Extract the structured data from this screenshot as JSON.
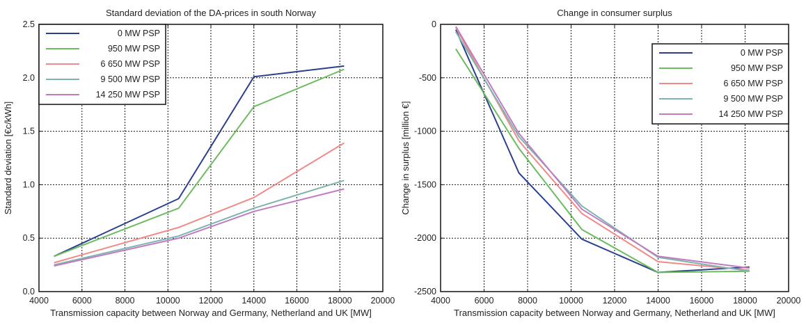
{
  "chart_data": [
    {
      "type": "line",
      "title": "Standard deviation of the DA-prices in south Norway",
      "xlabel": "Transmission capacity between Norway and Germany, Netherland and UK [MW]",
      "ylabel": "Standard deviation [€c/kWh]",
      "xlim": [
        4000,
        20000
      ],
      "ylim": [
        0.0,
        2.5
      ],
      "xticks": [
        "4000",
        "6000",
        "8000",
        "10000",
        "12000",
        "14000",
        "16000",
        "18000",
        "20000"
      ],
      "yticks": [
        "0.0",
        "0.5",
        "1.0",
        "1.5",
        "2.0",
        "2.5"
      ],
      "grid": true,
      "legend_position": "top-left",
      "series": [
        {
          "name": "0 MW PSP",
          "color": "#2b3f8f",
          "x": [
            4700,
            10500,
            14000,
            18200
          ],
          "y": [
            0.33,
            0.87,
            2.01,
            2.11
          ]
        },
        {
          "name": "950 MW PSP",
          "color": "#6cbb5e",
          "x": [
            4700,
            10500,
            14000,
            18200
          ],
          "y": [
            0.33,
            0.78,
            1.73,
            2.08
          ]
        },
        {
          "name": "6 650 MW PSP",
          "color": "#f08a88",
          "x": [
            4700,
            10500,
            14000,
            18200
          ],
          "y": [
            0.27,
            0.6,
            0.88,
            1.39
          ]
        },
        {
          "name": "9 500 MW PSP",
          "color": "#7bb5ad",
          "x": [
            4700,
            10500,
            14000,
            18200
          ],
          "y": [
            0.25,
            0.52,
            0.78,
            1.04
          ]
        },
        {
          "name": "14 250 MW PSP",
          "color": "#c27ac3",
          "x": [
            4700,
            10500,
            14000,
            18200
          ],
          "y": [
            0.24,
            0.5,
            0.75,
            0.96
          ]
        }
      ]
    },
    {
      "type": "line",
      "title": "Change in consumer surplus",
      "xlabel": "Transmission capacity between Norway and Germany, Netherland and UK [MW]",
      "ylabel": "Change in surplus [million €]",
      "xlim": [
        4000,
        20000
      ],
      "ylim": [
        -2500,
        0
      ],
      "xticks": [
        "4000",
        "6000",
        "8000",
        "10000",
        "12000",
        "14000",
        "16000",
        "18000",
        "20000"
      ],
      "yticks": [
        "-2500",
        "-2000",
        "-1500",
        "-1000",
        "-500",
        "0"
      ],
      "grid": true,
      "legend_position": "top-right",
      "series": [
        {
          "name": "0 MW PSP",
          "color": "#2b3f8f",
          "x": [
            4700,
            7600,
            10500,
            14000,
            18200
          ],
          "y": [
            -50,
            -1390,
            -2010,
            -2320,
            -2270
          ]
        },
        {
          "name": "950 MW PSP",
          "color": "#6cbb5e",
          "x": [
            4700,
            7600,
            10500,
            14000,
            18200
          ],
          "y": [
            -230,
            -1160,
            -1920,
            -2320,
            -2310
          ]
        },
        {
          "name": "6 650 MW PSP",
          "color": "#f08a88",
          "x": [
            4700,
            7600,
            10500,
            14000,
            18200
          ],
          "y": [
            -30,
            -1090,
            -1770,
            -2220,
            -2300
          ]
        },
        {
          "name": "9 500 MW PSP",
          "color": "#7bb5ad",
          "x": [
            4700,
            7600,
            10500,
            14000,
            18200
          ],
          "y": [
            -70,
            -1050,
            -1700,
            -2180,
            -2310
          ]
        },
        {
          "name": "14 250 MW PSP",
          "color": "#c27ac3",
          "x": [
            4700,
            7600,
            10500,
            14000,
            18200
          ],
          "y": [
            -20,
            -1020,
            -1730,
            -2170,
            -2280
          ]
        }
      ]
    }
  ]
}
